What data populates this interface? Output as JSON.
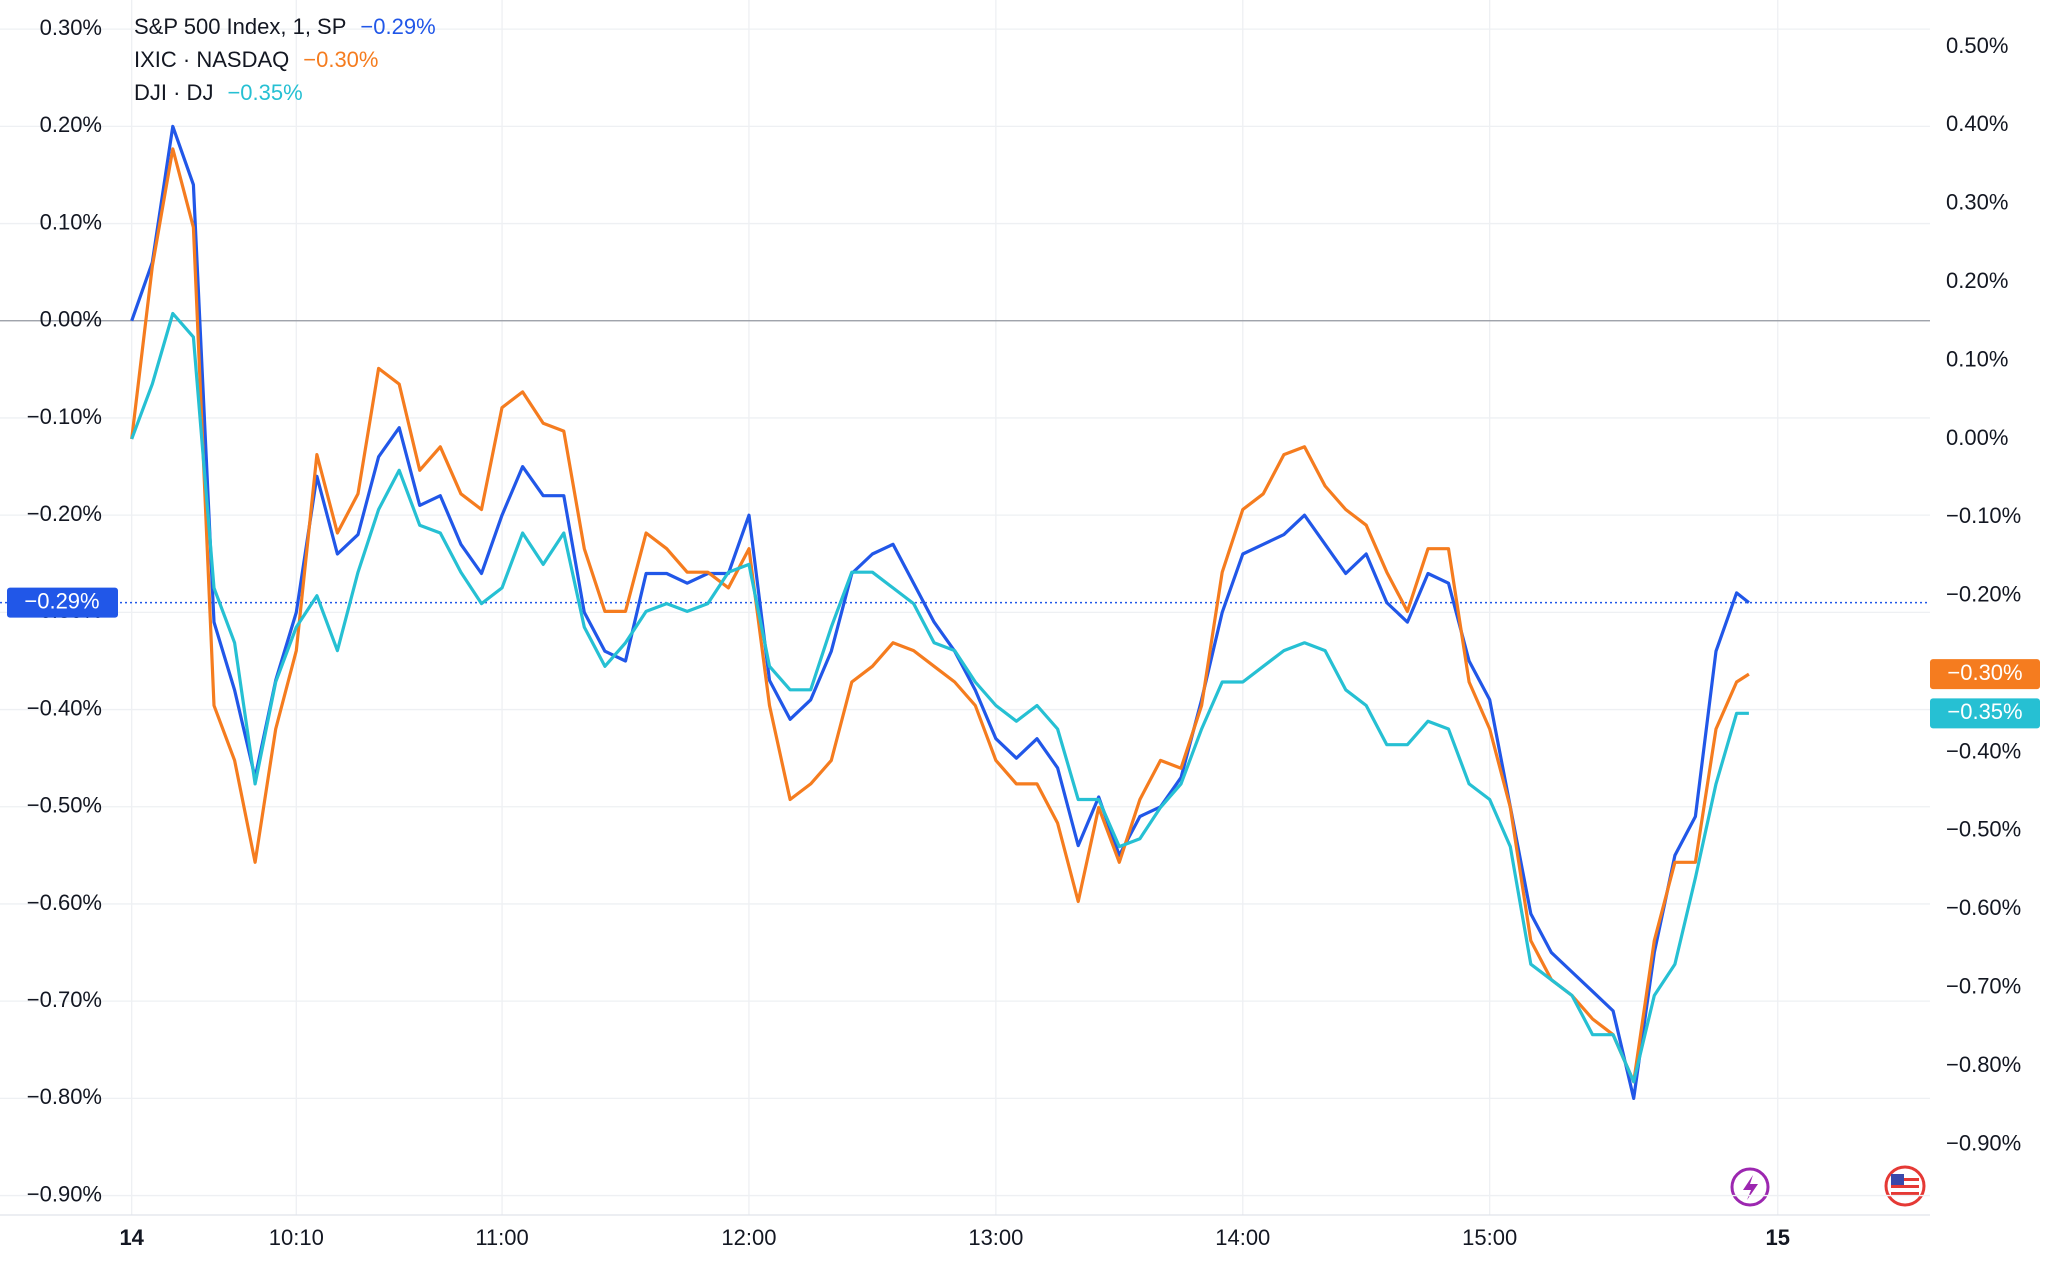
{
  "chart_data": {
    "type": "line",
    "x": [
      570,
      575,
      580,
      585,
      590,
      595,
      600,
      605,
      610,
      615,
      620,
      625,
      630,
      635,
      640,
      645,
      650,
      655,
      660,
      665,
      670,
      675,
      680,
      685,
      690,
      695,
      700,
      705,
      710,
      715,
      720,
      725,
      730,
      735,
      740,
      745,
      750,
      755,
      760,
      765,
      770,
      775,
      780,
      785,
      790,
      795,
      800,
      805,
      810,
      815,
      820,
      825,
      830,
      835,
      840,
      845,
      850,
      855,
      860,
      865,
      870,
      875,
      880,
      885,
      890,
      895,
      900,
      905,
      910,
      915,
      920,
      925,
      930,
      935,
      940,
      945,
      950,
      955,
      960,
      963
    ],
    "series": [
      {
        "name": "S&P 500 Index, 1, SP",
        "last_label": "−0.29%",
        "color": "#2157e8",
        "axis": "y",
        "values": [
          0,
          0.06,
          0.2,
          0.14,
          -0.31,
          -0.38,
          -0.47,
          -0.37,
          -0.3,
          -0.16,
          -0.24,
          -0.22,
          -0.14,
          -0.11,
          -0.19,
          -0.18,
          -0.23,
          -0.26,
          -0.2,
          -0.15,
          -0.18,
          -0.18,
          -0.3,
          -0.34,
          -0.35,
          -0.26,
          -0.26,
          -0.27,
          -0.26,
          -0.26,
          -0.2,
          -0.37,
          -0.41,
          -0.39,
          -0.34,
          -0.26,
          -0.24,
          -0.23,
          -0.27,
          -0.31,
          -0.34,
          -0.38,
          -0.43,
          -0.45,
          -0.43,
          -0.46,
          -0.54,
          -0.49,
          -0.55,
          -0.51,
          -0.5,
          -0.47,
          -0.39,
          -0.3,
          -0.24,
          -0.23,
          -0.22,
          -0.2,
          -0.23,
          -0.26,
          -0.24,
          -0.29,
          -0.31,
          -0.26,
          -0.27,
          -0.35,
          -0.39,
          -0.5,
          -0.61,
          -0.65,
          -0.67,
          -0.69,
          -0.71,
          -0.8,
          -0.65,
          -0.55,
          -0.51,
          -0.34,
          -0.28,
          -0.29
        ]
      },
      {
        "name": "IXIC · NASDAQ",
        "last_label": "−0.30%",
        "color": "#f57c1f",
        "axis": "y2",
        "values": [
          0,
          0.22,
          0.37,
          0.27,
          -0.34,
          -0.41,
          -0.54,
          -0.37,
          -0.27,
          -0.02,
          -0.12,
          -0.07,
          0.09,
          0.07,
          -0.04,
          -0.01,
          -0.07,
          -0.09,
          0.04,
          0.06,
          0.02,
          0.01,
          -0.14,
          -0.22,
          -0.22,
          -0.12,
          -0.14,
          -0.17,
          -0.17,
          -0.19,
          -0.14,
          -0.34,
          -0.46,
          -0.44,
          -0.41,
          -0.31,
          -0.29,
          -0.26,
          -0.27,
          -0.29,
          -0.31,
          -0.34,
          -0.41,
          -0.44,
          -0.44,
          -0.49,
          -0.59,
          -0.47,
          -0.54,
          -0.46,
          -0.41,
          -0.42,
          -0.34,
          -0.17,
          -0.09,
          -0.07,
          -0.02,
          -0.01,
          -0.06,
          -0.09,
          -0.11,
          -0.17,
          -0.22,
          -0.14,
          -0.14,
          -0.31,
          -0.37,
          -0.47,
          -0.64,
          -0.69,
          -0.71,
          -0.74,
          -0.76,
          -0.82,
          -0.64,
          -0.54,
          -0.54,
          -0.37,
          -0.31,
          -0.3
        ]
      },
      {
        "name": "DJI · DJ",
        "last_label": "−0.35%",
        "color": "#26c0d3",
        "axis": "y2",
        "values": [
          0,
          0.07,
          0.16,
          0.13,
          -0.19,
          -0.26,
          -0.44,
          -0.31,
          -0.24,
          -0.2,
          -0.27,
          -0.17,
          -0.09,
          -0.04,
          -0.11,
          -0.12,
          -0.17,
          -0.21,
          -0.19,
          -0.12,
          -0.16,
          -0.12,
          -0.24,
          -0.29,
          -0.26,
          -0.22,
          -0.21,
          -0.22,
          -0.21,
          -0.17,
          -0.16,
          -0.29,
          -0.32,
          -0.32,
          -0.24,
          -0.17,
          -0.17,
          -0.19,
          -0.21,
          -0.26,
          -0.27,
          -0.31,
          -0.34,
          -0.36,
          -0.34,
          -0.37,
          -0.46,
          -0.46,
          -0.52,
          -0.51,
          -0.47,
          -0.44,
          -0.37,
          -0.31,
          -0.31,
          -0.29,
          -0.27,
          -0.26,
          -0.27,
          -0.32,
          -0.34,
          -0.39,
          -0.39,
          -0.36,
          -0.37,
          -0.44,
          -0.46,
          -0.52,
          -0.67,
          -0.69,
          -0.71,
          -0.76,
          -0.76,
          -0.82,
          -0.71,
          -0.67,
          -0.56,
          -0.44,
          -0.35,
          -0.35
        ]
      }
    ],
    "xlim": [
      538,
      1007
    ],
    "xticks": [
      {
        "value": 570,
        "label": "14"
      },
      {
        "value": 610,
        "label": "10:10"
      },
      {
        "value": 660,
        "label": "11:00"
      },
      {
        "value": 720,
        "label": "12:00"
      },
      {
        "value": 780,
        "label": "13:00"
      },
      {
        "value": 840,
        "label": "14:00"
      },
      {
        "value": 900,
        "label": "15:00"
      },
      {
        "value": 970,
        "label": "15"
      }
    ],
    "ylim": [
      -0.92,
      0.33
    ],
    "yticks": [
      {
        "value": 0.3,
        "label": "0.30%"
      },
      {
        "value": 0.2,
        "label": "0.20%"
      },
      {
        "value": 0.1,
        "label": "0.10%"
      },
      {
        "value": 0,
        "label": "0.00%"
      },
      {
        "value": -0.1,
        "label": "−0.10%"
      },
      {
        "value": -0.2,
        "label": "−0.20%"
      },
      {
        "value": -0.3,
        "label": "−0.30%"
      },
      {
        "value": -0.4,
        "label": "−0.40%"
      },
      {
        "value": -0.5,
        "label": "−0.50%"
      },
      {
        "value": -0.6,
        "label": "−0.60%"
      },
      {
        "value": -0.7,
        "label": "−0.70%"
      },
      {
        "value": -0.8,
        "label": "−0.80%"
      },
      {
        "value": -0.9,
        "label": "−0.90%"
      }
    ],
    "y2lim": [
      -0.99,
      0.56
    ],
    "y2ticks": [
      {
        "value": 0.5,
        "label": "0.50%"
      },
      {
        "value": 0.4,
        "label": "0.40%"
      },
      {
        "value": 0.3,
        "label": "0.30%"
      },
      {
        "value": 0.2,
        "label": "0.20%"
      },
      {
        "value": 0.1,
        "label": "0.10%"
      },
      {
        "value": 0,
        "label": "0.00%"
      },
      {
        "value": -0.1,
        "label": "−0.10%"
      },
      {
        "value": -0.2,
        "label": "−0.20%"
      },
      {
        "value": -0.4,
        "label": "−0.40%"
      },
      {
        "value": -0.5,
        "label": "−0.50%"
      },
      {
        "value": -0.6,
        "label": "−0.60%"
      },
      {
        "value": -0.7,
        "label": "−0.70%"
      },
      {
        "value": -0.8,
        "label": "−0.80%"
      },
      {
        "value": -0.9,
        "label": "−0.90%"
      }
    ],
    "grid": true,
    "zero_line": true
  }
}
